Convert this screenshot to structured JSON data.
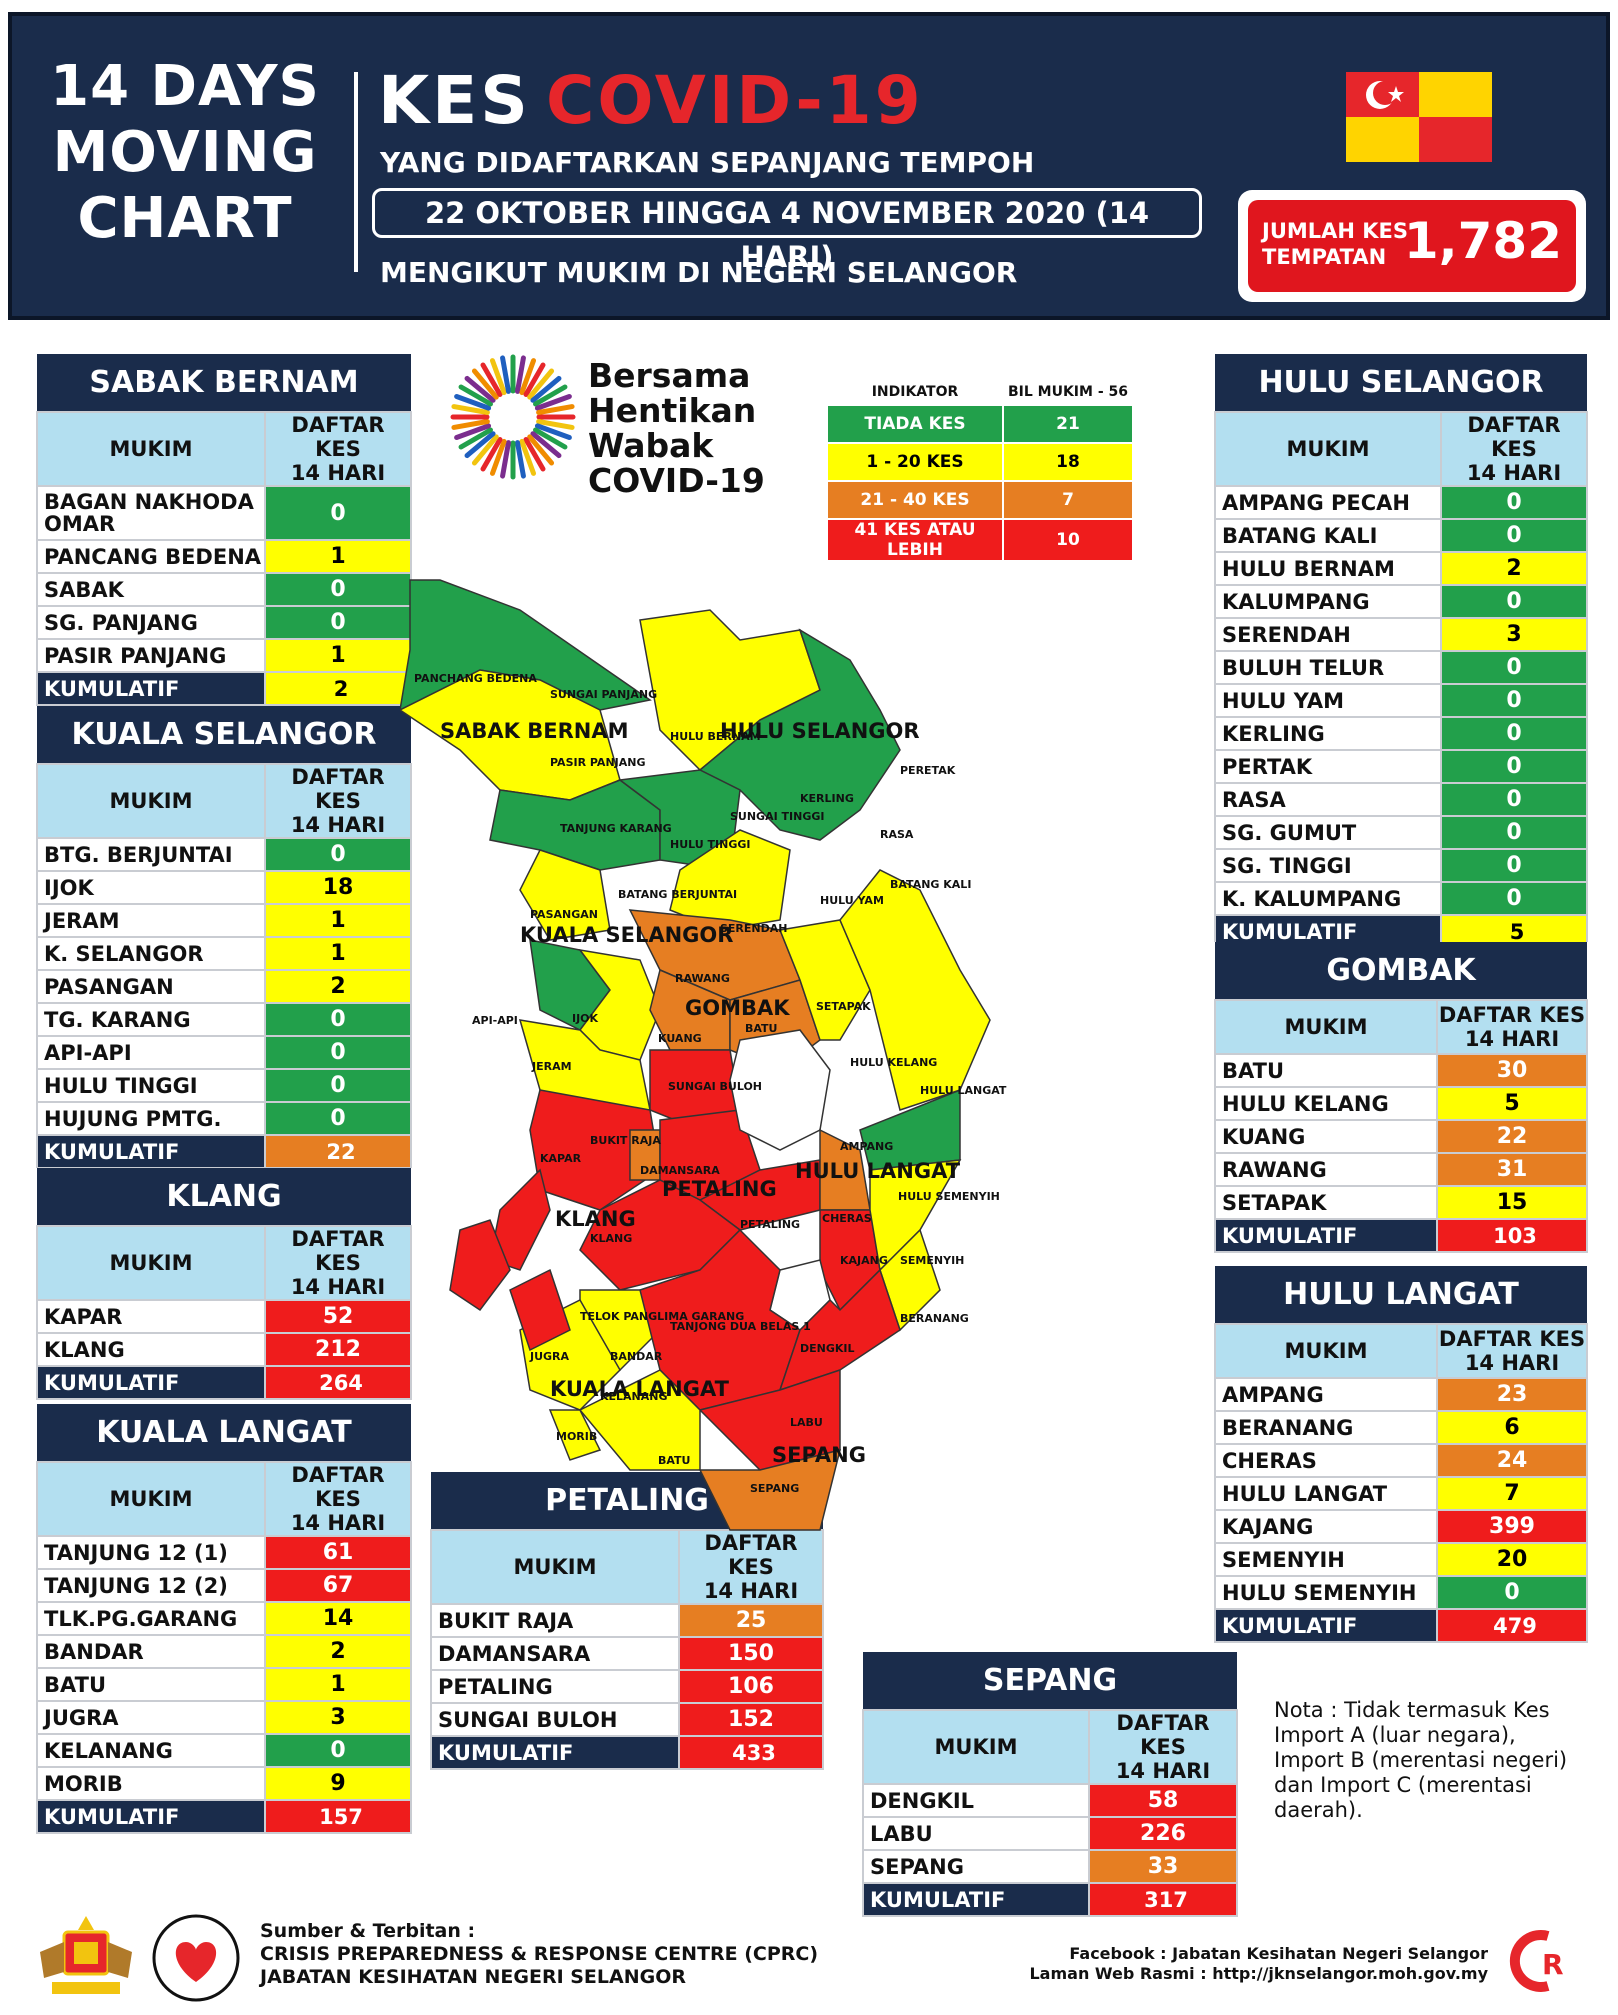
{
  "header": {
    "left_title": [
      "14 DAYS",
      "MOVING",
      "CHART"
    ],
    "kes": "KES",
    "covid": "COVID-19",
    "sub1": "YANG DIDAFTARKAN SEPANJANG TEMPOH",
    "date": "22 OKTOBER HINGGA 4 NOVEMBER 2020 (14 HARI)",
    "sub2": "MENGIKUT MUKIM DI NEGERI SELANGOR",
    "jumlah_l1": "JUMLAH KES",
    "jumlah_l2": "TEMPATAN",
    "jumlah_value": "1,782"
  },
  "logo": {
    "l1": "Bersama",
    "l2": "Hentikan",
    "l3": "Wabak",
    "l4": "COVID-19"
  },
  "indicator": {
    "h1": "INDIKATOR",
    "h2": "BIL MUKIM - 56",
    "rows": [
      {
        "label": "TIADA KES",
        "value": "21",
        "color": "g"
      },
      {
        "label": "1 - 20 KES",
        "value": "18",
        "color": "y"
      },
      {
        "label": "21 - 40 KES",
        "value": "7",
        "color": "o"
      },
      {
        "label": "41 KES ATAU LEBIH",
        "value": "10",
        "color": "r"
      }
    ]
  },
  "col_mukim": "MUKIM",
  "col_daftar1": "DAFTAR KES",
  "col_daftar2": "14 HARI",
  "kum_label": "KUMULATIF",
  "districts": {
    "sabak": {
      "title": "SABAK BERNAM",
      "rows": [
        [
          "BAGAN NAKHODA OMAR",
          "0"
        ],
        [
          "PANCANG BEDENA",
          "1"
        ],
        [
          "SABAK",
          "0"
        ],
        [
          "SG. PANJANG",
          "0"
        ],
        [
          "PASIR PANJANG",
          "1"
        ]
      ],
      "total": "2"
    },
    "kselangor": {
      "title": "KUALA SELANGOR",
      "rows": [
        [
          "BTG. BERJUNTAI",
          "0"
        ],
        [
          "IJOK",
          "18"
        ],
        [
          "JERAM",
          "1"
        ],
        [
          "K. SELANGOR",
          "1"
        ],
        [
          "PASANGAN",
          "2"
        ],
        [
          "TG. KARANG",
          "0"
        ],
        [
          "API-API",
          "0"
        ],
        [
          "HULU TINGGI",
          "0"
        ],
        [
          "HUJUNG PMTG.",
          "0"
        ]
      ],
      "total": "22"
    },
    "klang": {
      "title": "KLANG",
      "rows": [
        [
          "KAPAR",
          "52"
        ],
        [
          "KLANG",
          "212"
        ]
      ],
      "total": "264"
    },
    "klangat": {
      "title": "KUALA LANGAT",
      "rows": [
        [
          "TANJUNG 12 (1)",
          "61"
        ],
        [
          "TANJUNG 12 (2)",
          "67"
        ],
        [
          "TLK.PG.GARANG",
          "14"
        ],
        [
          "BANDAR",
          "2"
        ],
        [
          "BATU",
          "1"
        ],
        [
          "JUGRA",
          "3"
        ],
        [
          "KELANANG",
          "0"
        ],
        [
          "MORIB",
          "9"
        ]
      ],
      "total": "157"
    },
    "petaling": {
      "title": "PETALING",
      "rows": [
        [
          "BUKIT RAJA",
          "25"
        ],
        [
          "DAMANSARA",
          "150"
        ],
        [
          "PETALING",
          "106"
        ],
        [
          "SUNGAI BULOH",
          "152"
        ]
      ],
      "total": "433"
    },
    "sepang": {
      "title": "SEPANG",
      "rows": [
        [
          "DENGKIL",
          "58"
        ],
        [
          "LABU",
          "226"
        ],
        [
          "SEPANG",
          "33"
        ]
      ],
      "total": "317"
    },
    "huluselangor": {
      "title": "HULU SELANGOR",
      "rows": [
        [
          "AMPANG PECAH",
          "0"
        ],
        [
          "BATANG KALI",
          "0"
        ],
        [
          "HULU BERNAM",
          "2"
        ],
        [
          "KALUMPANG",
          "0"
        ],
        [
          "SERENDAH",
          "3"
        ],
        [
          "BULUH TELUR",
          "0"
        ],
        [
          "HULU YAM",
          "0"
        ],
        [
          "KERLING",
          "0"
        ],
        [
          "PERTAK",
          "0"
        ],
        [
          "RASA",
          "0"
        ],
        [
          "SG. GUMUT",
          "0"
        ],
        [
          "SG. TINGGI",
          "0"
        ],
        [
          "K. KALUMPANG",
          "0"
        ]
      ],
      "total": "5"
    },
    "gombak": {
      "title": "GOMBAK",
      "rows": [
        [
          "BATU",
          "30"
        ],
        [
          "HULU KELANG",
          "5"
        ],
        [
          "KUANG",
          "22"
        ],
        [
          "RAWANG",
          "31"
        ],
        [
          "SETAPAK",
          "15"
        ]
      ],
      "total": "103"
    },
    "hululangat": {
      "title": "HULU LANGAT",
      "rows": [
        [
          "AMPANG",
          "23"
        ],
        [
          "BERANANG",
          "6"
        ],
        [
          "CHERAS",
          "24"
        ],
        [
          "HULU LANGAT",
          "7"
        ],
        [
          "KAJANG",
          "399"
        ],
        [
          "SEMENYIH",
          "20"
        ],
        [
          "HULU SEMENYIH",
          "0"
        ]
      ],
      "total": "479"
    }
  },
  "map_labels": {
    "sabak": "SABAK BERNAM",
    "hulusel": "HULU SELANGOR",
    "kualasel": "KUALA SELANGOR",
    "gombak": "GOMBAK",
    "hululangat": "HULU LANGAT",
    "petaling": "PETALING",
    "klang": "KLANG",
    "kualalangat": "KUALA LANGAT",
    "sepang": "SEPANG",
    "m_panchang": "PANCHANG BEDENA",
    "m_sgpanjang": "SUNGAI PANJANG",
    "m_pasir": "PASIR PANJANG",
    "m_hulubernam": "HULU BERNAM",
    "m_tgkarang": "TANJUNG KARANG",
    "m_hulutinggi": "HULU TINGGI",
    "m_sgtinggi": "SUNGAI TINGGI",
    "m_kerling": "KERLING",
    "m_peretak": "PERETAK",
    "m_rasa": "RASA",
    "m_batangkali": "BATANG KALI",
    "m_huluyam": "HULU YAM",
    "m_serendah": "SERENDAH",
    "m_rawang": "RAWANG",
    "m_kuang": "KUANG",
    "m_batu": "BATU",
    "m_setapak": "SETAPAK",
    "m_ijok": "IJOK",
    "m_jeram": "JERAM",
    "m_apiapi": "API-API",
    "m_pasangan": "PASANGAN",
    "m_sgbuloh": "SUNGAI BULOH",
    "m_kapar": "KAPAR",
    "m_damansara": "DAMANSARA",
    "m_bukitraja": "BUKIT RAJA",
    "m_klang": "KLANG",
    "m_petaling": "PETALING",
    "m_cheras": "CHERAS",
    "m_kajang": "KAJANG",
    "m_semenyih": "SEMENYIH",
    "m_beranang": "BERANANG",
    "m_hulusemenyih": "HULU SEMENYIH",
    "m_hululangat": "HULU LANGAT",
    "m_hulukelang": "HULU KELANG",
    "m_telok": "TELOK PANGLIMA GARANG",
    "m_jugra": "JUGRA",
    "m_bandar": "BANDAR",
    "m_tanjong": "TANJONG DUA BELAS 1",
    "m_dengkil": "DENGKIL",
    "m_labu": "LABU",
    "m_sepang": "SEPANG",
    "m_batu2": "BATU",
    "m_morib": "MORIB",
    "m_kelanang": "KELANANG",
    "m_batangberjuntai": "BATANG BERJUNTAI",
    "m_ampang": "AMPANG"
  },
  "nota": "Nota : Tidak termasuk Kes Import A (luar negara), Import B (merentasi negeri) dan Import C (merentasi daerah).",
  "footer": {
    "l1": "Sumber & Terbitan :",
    "l2": "CRISIS PREPAREDNESS & RESPONSE CENTRE (CPRC)",
    "l3": "JABATAN KESIHATAN NEGERI SELANGOR",
    "r1": "Facebook : Jabatan Kesihatan Negeri Selangor",
    "r2": "Laman Web Rasmi : http://jknselangor.moh.gov.my"
  }
}
